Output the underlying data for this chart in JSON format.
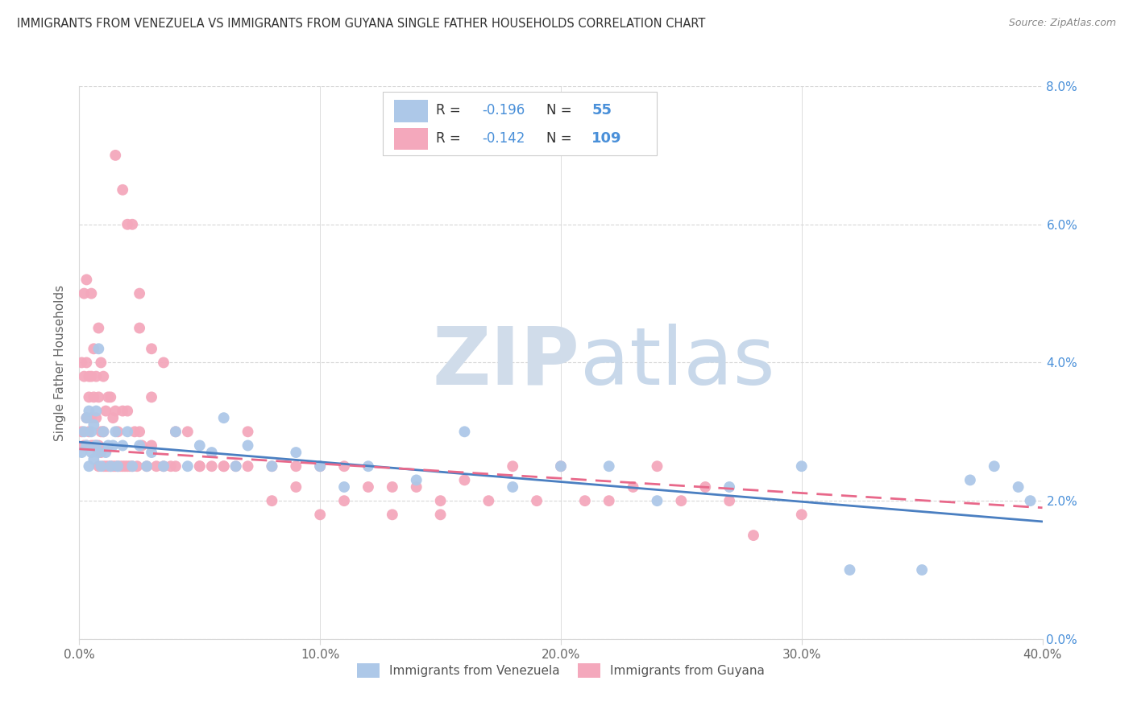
{
  "title": "IMMIGRANTS FROM VENEZUELA VS IMMIGRANTS FROM GUYANA SINGLE FATHER HOUSEHOLDS CORRELATION CHART",
  "source": "Source: ZipAtlas.com",
  "xlabel_ticks": [
    "0.0%",
    "10.0%",
    "20.0%",
    "30.0%",
    "40.0%"
  ],
  "ylabel_left": "Single Father Households",
  "ylabel_right_ticks": [
    "0.0%",
    "2.0%",
    "4.0%",
    "6.0%",
    "8.0%"
  ],
  "legend_label_blue": "Immigrants from Venezuela",
  "legend_label_pink": "Immigrants from Guyana",
  "R_blue": "-0.196",
  "N_blue": "55",
  "R_pink": "-0.142",
  "N_pink": "109",
  "blue_color": "#adc8e8",
  "pink_color": "#f4a8bc",
  "blue_line_color": "#4a7fc1",
  "pink_line_color": "#e8688a",
  "watermark_ZIP_color": "#d0dcea",
  "watermark_atlas_color": "#c8d8ea",
  "background_color": "#ffffff",
  "grid_color": "#d8d8d8",
  "title_color": "#333333",
  "source_color": "#888888",
  "right_axis_color": "#4a90d9",
  "xlim": [
    0.0,
    0.4
  ],
  "ylim": [
    0.0,
    0.08
  ],
  "blue_scatter_x": [
    0.001,
    0.002,
    0.003,
    0.003,
    0.004,
    0.004,
    0.005,
    0.005,
    0.006,
    0.006,
    0.007,
    0.007,
    0.008,
    0.008,
    0.009,
    0.01,
    0.011,
    0.012,
    0.013,
    0.014,
    0.015,
    0.016,
    0.018,
    0.02,
    0.022,
    0.025,
    0.028,
    0.03,
    0.035,
    0.04,
    0.045,
    0.05,
    0.055,
    0.06,
    0.065,
    0.07,
    0.08,
    0.09,
    0.1,
    0.11,
    0.12,
    0.14,
    0.16,
    0.18,
    0.2,
    0.22,
    0.24,
    0.27,
    0.3,
    0.32,
    0.35,
    0.37,
    0.38,
    0.39,
    0.395
  ],
  "blue_scatter_y": [
    0.027,
    0.03,
    0.028,
    0.032,
    0.025,
    0.033,
    0.027,
    0.03,
    0.026,
    0.031,
    0.028,
    0.033,
    0.027,
    0.042,
    0.025,
    0.03,
    0.027,
    0.028,
    0.025,
    0.028,
    0.03,
    0.025,
    0.028,
    0.03,
    0.025,
    0.028,
    0.025,
    0.027,
    0.025,
    0.03,
    0.025,
    0.028,
    0.027,
    0.032,
    0.025,
    0.028,
    0.025,
    0.027,
    0.025,
    0.022,
    0.025,
    0.023,
    0.03,
    0.022,
    0.025,
    0.025,
    0.02,
    0.022,
    0.025,
    0.01,
    0.01,
    0.023,
    0.025,
    0.022,
    0.02
  ],
  "pink_scatter_x": [
    0.001,
    0.001,
    0.002,
    0.002,
    0.002,
    0.003,
    0.003,
    0.003,
    0.003,
    0.004,
    0.004,
    0.004,
    0.005,
    0.005,
    0.005,
    0.005,
    0.006,
    0.006,
    0.006,
    0.007,
    0.007,
    0.007,
    0.008,
    0.008,
    0.008,
    0.008,
    0.009,
    0.009,
    0.009,
    0.01,
    0.01,
    0.01,
    0.011,
    0.011,
    0.012,
    0.012,
    0.013,
    0.013,
    0.014,
    0.014,
    0.015,
    0.015,
    0.016,
    0.016,
    0.017,
    0.018,
    0.018,
    0.019,
    0.02,
    0.02,
    0.021,
    0.022,
    0.023,
    0.024,
    0.025,
    0.026,
    0.028,
    0.03,
    0.032,
    0.035,
    0.038,
    0.04,
    0.045,
    0.05,
    0.055,
    0.06,
    0.065,
    0.07,
    0.08,
    0.09,
    0.1,
    0.11,
    0.12,
    0.13,
    0.14,
    0.15,
    0.16,
    0.17,
    0.18,
    0.19,
    0.2,
    0.21,
    0.22,
    0.23,
    0.24,
    0.25,
    0.26,
    0.27,
    0.28,
    0.3,
    0.02,
    0.025,
    0.03,
    0.035,
    0.015,
    0.018,
    0.022,
    0.025,
    0.03,
    0.04,
    0.05,
    0.06,
    0.07,
    0.08,
    0.09,
    0.1,
    0.11,
    0.13,
    0.15
  ],
  "pink_scatter_y": [
    0.03,
    0.04,
    0.028,
    0.038,
    0.05,
    0.028,
    0.032,
    0.04,
    0.052,
    0.03,
    0.035,
    0.038,
    0.028,
    0.032,
    0.038,
    0.05,
    0.028,
    0.035,
    0.042,
    0.028,
    0.032,
    0.038,
    0.025,
    0.028,
    0.035,
    0.045,
    0.027,
    0.03,
    0.04,
    0.025,
    0.03,
    0.038,
    0.025,
    0.033,
    0.025,
    0.035,
    0.025,
    0.035,
    0.025,
    0.032,
    0.025,
    0.033,
    0.025,
    0.03,
    0.025,
    0.025,
    0.033,
    0.025,
    0.025,
    0.033,
    0.025,
    0.025,
    0.03,
    0.025,
    0.03,
    0.028,
    0.025,
    0.028,
    0.025,
    0.025,
    0.025,
    0.025,
    0.03,
    0.025,
    0.025,
    0.025,
    0.025,
    0.025,
    0.025,
    0.025,
    0.025,
    0.025,
    0.022,
    0.022,
    0.022,
    0.02,
    0.023,
    0.02,
    0.025,
    0.02,
    0.025,
    0.02,
    0.02,
    0.022,
    0.025,
    0.02,
    0.022,
    0.02,
    0.015,
    0.018,
    0.06,
    0.05,
    0.035,
    0.04,
    0.07,
    0.065,
    0.06,
    0.045,
    0.042,
    0.03,
    0.025,
    0.025,
    0.03,
    0.02,
    0.022,
    0.018,
    0.02,
    0.018,
    0.018
  ]
}
